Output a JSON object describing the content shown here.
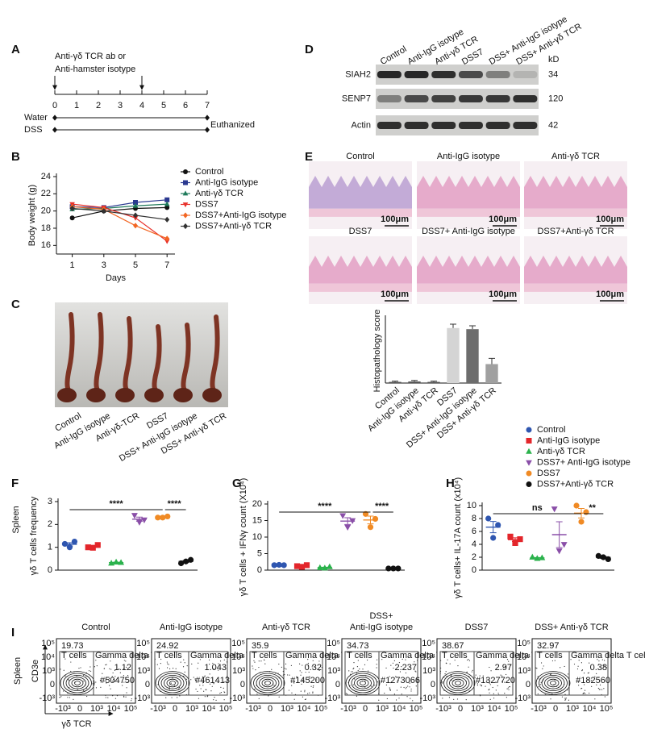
{
  "panel_labels": [
    "A",
    "B",
    "C",
    "D",
    "E",
    "F",
    "G",
    "H",
    "I"
  ],
  "timeline": {
    "treatment": [
      "Anti-γδ TCR ab or",
      "Anti-hamster isotype"
    ],
    "days": [
      0,
      1,
      2,
      3,
      4,
      5,
      6,
      7
    ],
    "injection_days": [
      0,
      4
    ],
    "rows": [
      "Water",
      "DSS"
    ],
    "end_label": "Euthanized"
  },
  "blot": {
    "lanes": [
      "Control",
      "Anti-IgG isotype",
      "Anti-γδ TCR",
      "DSS7",
      "DSS+ Anti-IgG isotype",
      "DSS+ Anti-γδ TCR"
    ],
    "unit": "kD",
    "bands": [
      {
        "name": "SIAH2",
        "kd": 34
      },
      {
        "name": "SENP7",
        "kd": 120
      },
      {
        "name": "Actin",
        "kd": 42
      }
    ]
  },
  "photo": {
    "lanes": [
      "Control",
      "Anti-IgG isotype",
      "Anti-γδ-TCR",
      "DSS7",
      "DSS+ Anti-IgG isotype",
      "DSS+ Anti-γδ TCR"
    ]
  },
  "histology": {
    "images": [
      "Control",
      "Anti-IgG isotype",
      "Anti-γδ TCR",
      "DSS7",
      "DSS7+ Anti-IgG isotype",
      "DSS7+Anti-γδ TCR"
    ],
    "scale_bar": "100μm"
  },
  "dot_groups": [
    {
      "name": "Control",
      "color": "#2f56b0",
      "marker": "circle"
    },
    {
      "name": "Anti-IgG isotype",
      "color": "#e3262b",
      "marker": "square"
    },
    {
      "name": "Anti-γδ TCR",
      "color": "#2bb24c",
      "marker": "triangle"
    },
    {
      "name": "DSS7+ Anti-IgG isotype",
      "color": "#8a4fa8",
      "marker": "triangle-down"
    },
    {
      "name": "DSS7",
      "color": "#f08a24",
      "marker": "circle"
    },
    {
      "name": "DSS7+Anti-γδ TCR",
      "color": "#111111",
      "marker": "circle"
    }
  ],
  "chart_data": [
    {
      "type": "line",
      "ylabel": "Body weight (g)",
      "xlabel": "Days",
      "x": [
        1,
        3,
        5,
        7
      ],
      "xlim": [
        0,
        7.5
      ],
      "xticks": [
        1,
        3,
        5,
        7
      ],
      "ylim": [
        15,
        24
      ],
      "yticks": [
        16,
        18,
        20,
        22,
        24
      ],
      "series": [
        {
          "name": "Control",
          "color": "#111111",
          "marker": "circle",
          "values": [
            19.2,
            20.0,
            20.3,
            20.4
          ]
        },
        {
          "name": "Anti-IgG isotype",
          "color": "#2b3990",
          "marker": "square",
          "values": [
            20.5,
            20.4,
            21.0,
            21.3
          ]
        },
        {
          "name": "Anti-γδ TCR",
          "color": "#1f7a5a",
          "marker": "triangle",
          "values": [
            20.2,
            20.3,
            20.6,
            20.8
          ]
        },
        {
          "name": "DSS7",
          "color": "#e8302a",
          "marker": "triangle-down",
          "values": [
            20.8,
            20.4,
            19.2,
            16.5
          ]
        },
        {
          "name": "DSS7+Anti-IgG isotype",
          "color": "#f26522",
          "marker": "diamond",
          "values": [
            20.5,
            20.2,
            18.3,
            16.8
          ]
        },
        {
          "name": "DSS7+Anti-γδ TCR",
          "color": "#333333",
          "marker": "diamond",
          "values": [
            20.3,
            20.0,
            19.5,
            19.0
          ]
        }
      ]
    },
    {
      "type": "bar",
      "ylabel": "Histopathology score",
      "ylim": [
        0,
        17
      ],
      "categories": [
        "Control",
        "Anti-IgG isotype",
        "Anti-γδ TCR",
        "DSS7",
        "DSS+ Anti-IgG isotype",
        "DSS+ Anti-γδ TCR"
      ],
      "values": [
        0.3,
        0.4,
        0.3,
        14.5,
        14.2,
        5.0
      ],
      "errors": [
        0.2,
        0.3,
        0.2,
        1.0,
        0.9,
        1.5
      ],
      "colors": [
        "#555555",
        "#555555",
        "#555555",
        "#d4d4d4",
        "#6d6d6d",
        "#a0a0a0"
      ]
    },
    {
      "type": "dot",
      "side_label": "Spleen",
      "ylabel": "γδ T cells frequency",
      "ylim": [
        0,
        3
      ],
      "yticks": [
        0,
        1,
        2,
        3
      ],
      "series": [
        {
          "values": [
            1.15,
            1.25,
            1.0
          ],
          "mean": 1.13,
          "error": 0.07
        },
        {
          "values": [
            1.0,
            1.1,
            0.98
          ],
          "mean": 1.03,
          "error": 0.04
        },
        {
          "values": [
            0.3,
            0.33,
            0.35
          ],
          "mean": 0.33,
          "error": 0.02
        },
        {
          "values": [
            2.4,
            2.2,
            2.1
          ],
          "mean": 2.23,
          "error": 0.09
        },
        {
          "values": [
            2.3,
            2.35,
            2.3
          ],
          "mean": 2.32,
          "error": 0.02
        },
        {
          "values": [
            0.3,
            0.45,
            0.38
          ],
          "mean": 0.38,
          "error": 0.04
        }
      ],
      "annotations": [
        {
          "label": "****",
          "from": 0,
          "to": 4
        },
        {
          "label": "****",
          "from": 4,
          "to": 5
        }
      ]
    },
    {
      "type": "dot",
      "ylabel": "γδ T cells + IFNγ count (X10⁴)",
      "ylim": [
        0,
        20
      ],
      "yticks": [
        0,
        5,
        10,
        15,
        20
      ],
      "series": [
        {
          "values": [
            1.5,
            1.5,
            1.6
          ],
          "mean": 1.53,
          "error": 0.03
        },
        {
          "values": [
            1.2,
            1.5,
            1.0
          ],
          "mean": 1.23,
          "error": 0.15
        },
        {
          "values": [
            0.7,
            1.0,
            0.6
          ],
          "mean": 0.77,
          "error": 0.12
        },
        {
          "values": [
            16.5,
            15.0,
            13.0
          ],
          "mean": 14.83,
          "error": 1.01
        },
        {
          "values": [
            17.0,
            15.5,
            13.0
          ],
          "mean": 15.17,
          "error": 1.17
        },
        {
          "values": [
            0.5,
            0.5,
            0.5
          ],
          "mean": 0.5,
          "error": 0
        }
      ],
      "annotations": [
        {
          "label": "****",
          "from": 0,
          "to": 4
        },
        {
          "label": "****",
          "from": 4,
          "to": 5
        }
      ]
    },
    {
      "type": "dot",
      "ylabel": "γδ T cells+ IL-17A count (x10⁴)",
      "ylim": [
        0,
        10
      ],
      "yticks": [
        0,
        2,
        4,
        6,
        8,
        10
      ],
      "series": [
        {
          "values": [
            8.0,
            7.0,
            5.0
          ],
          "mean": 6.67,
          "error": 0.88
        },
        {
          "values": [
            5.2,
            4.8,
            4.2
          ],
          "mean": 4.73,
          "error": 0.29
        },
        {
          "values": [
            2.0,
            1.9,
            1.8
          ],
          "mean": 1.9,
          "error": 0.06
        },
        {
          "values": [
            9.5,
            4.0,
            3.0
          ],
          "mean": 5.5,
          "error": 2.0
        },
        {
          "values": [
            10.0,
            9.0,
            7.5
          ],
          "mean": 8.83,
          "error": 0.73
        },
        {
          "values": [
            2.2,
            1.7,
            2.0
          ],
          "mean": 1.97,
          "error": 0.15
        }
      ],
      "annotations": [
        {
          "label": "ns",
          "from": 0,
          "to": 4
        },
        {
          "label": "**",
          "from": 4,
          "to": 5
        }
      ]
    }
  ],
  "flow": {
    "titles": [
      "Control",
      "Anti-IgG isotype",
      "Anti-γδ TCR",
      [
        "DSS+",
        "Anti-IgG isotype"
      ],
      "DSS7",
      "DSS+ Anti-γδ TCR"
    ],
    "t_cells": [
      19.73,
      24.92,
      35.9,
      34.73,
      38.67,
      32.97
    ],
    "gamma_delta": [
      1.12,
      1.043,
      0.32,
      2.237,
      2.97,
      0.38
    ],
    "counts": [
      "#504750",
      "#461413",
      "#145200",
      "#1273066",
      "#1327720",
      "#182560"
    ],
    "gates": [
      "T cells",
      "Gamma delta T cells"
    ],
    "axis_ticks": [
      "-10³",
      "0",
      "10³",
      "10⁴",
      "10⁵"
    ],
    "side_label": "Spleen",
    "ylabel": "CD3e",
    "xlabel": "γδ TCR"
  }
}
